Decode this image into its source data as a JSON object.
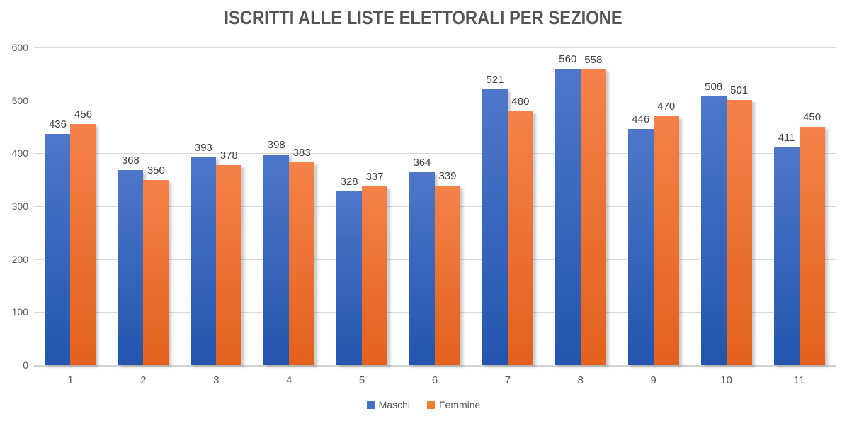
{
  "chart_data": {
    "type": "bar",
    "title": "ISCRITTI ALLE LISTE ELETTORALI PER SEZIONE",
    "xlabel": "",
    "ylabel": "",
    "categories": [
      "1",
      "2",
      "3",
      "4",
      "5",
      "6",
      "7",
      "8",
      "9",
      "10",
      "11"
    ],
    "series": [
      {
        "name": "Maschi",
        "color": "#4472C4",
        "gradient_top": "#4E77C9",
        "gradient_bottom": "#2355AE",
        "values": [
          436,
          368,
          393,
          398,
          328,
          364,
          521,
          560,
          446,
          508,
          411
        ]
      },
      {
        "name": "Femmine",
        "color": "#ED7D31",
        "gradient_top": "#F4824A",
        "gradient_bottom": "#E2611C",
        "values": [
          456,
          350,
          378,
          383,
          337,
          339,
          480,
          558,
          470,
          501,
          450
        ]
      }
    ],
    "ylim": [
      0,
      600
    ],
    "yticks": [
      0,
      100,
      200,
      300,
      400,
      500,
      600
    ],
    "grid": "horizontal",
    "data_labels": true,
    "legend_position": "bottom"
  },
  "colors": {
    "title_text": "#555555",
    "axis_text": "#595959",
    "data_label_text": "#404040",
    "gridline": "#d9d9d9",
    "axis_line": "#d2d2d2",
    "background": "#ffffff"
  }
}
